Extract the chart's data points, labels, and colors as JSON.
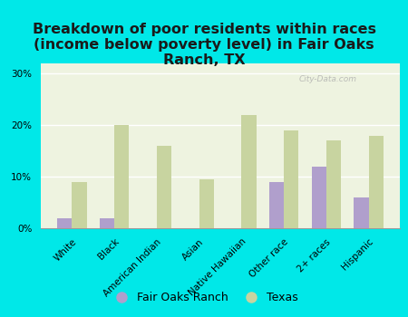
{
  "title": "Breakdown of poor residents within races\n(income below poverty level) in Fair Oaks\nRanch, TX",
  "categories": [
    "White",
    "Black",
    "American Indian",
    "Asian",
    "Native Hawaiian",
    "Other race",
    "2+ races",
    "Hispanic"
  ],
  "fair_oaks_values": [
    2.0,
    2.0,
    0.0,
    0.0,
    0.0,
    9.0,
    12.0,
    6.0
  ],
  "texas_values": [
    9.0,
    20.0,
    16.0,
    9.5,
    22.0,
    19.0,
    17.0,
    18.0
  ],
  "fair_oaks_color": "#b09fcc",
  "texas_color": "#c8d4a0",
  "background_color": "#00e8e8",
  "plot_bg_color": "#eef3e0",
  "ylim": [
    0,
    32
  ],
  "yticks": [
    0,
    10,
    20,
    30
  ],
  "ytick_labels": [
    "0%",
    "10%",
    "20%",
    "30%"
  ],
  "bar_width": 0.35,
  "title_fontsize": 11.5,
  "tick_fontsize": 7.5,
  "legend_fontsize": 9,
  "watermark": "City-Data.com"
}
